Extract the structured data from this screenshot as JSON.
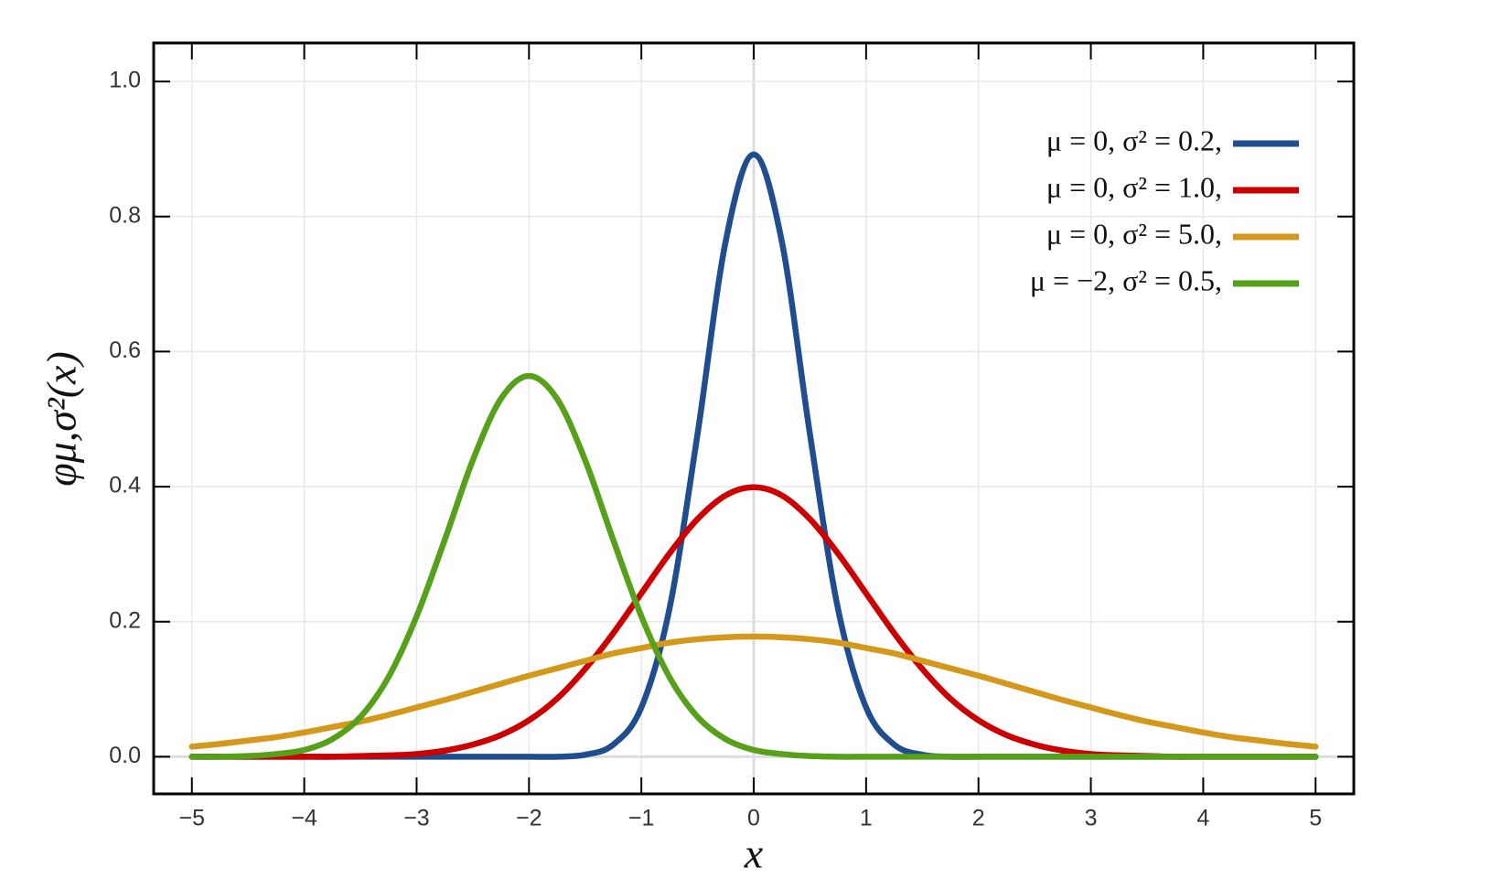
{
  "chart_data": {
    "type": "line",
    "x_label": "x",
    "y_label": "φμ,σ²(x)",
    "x": [
      -5,
      -4.75,
      -4.5,
      -4.25,
      -4,
      -3.75,
      -3.5,
      -3.25,
      -3,
      -2.75,
      -2.5,
      -2.25,
      -2,
      -1.75,
      -1.5,
      -1.25,
      -1,
      -0.75,
      -0.5,
      -0.25,
      0,
      0.25,
      0.5,
      0.75,
      1,
      1.25,
      1.5,
      1.75,
      2,
      2.25,
      2.5,
      2.75,
      3,
      3.25,
      3.5,
      3.75,
      4,
      4.25,
      4.5,
      4.75,
      5
    ],
    "series": [
      {
        "name": "μ = 0,    σ² = 0.2,",
        "color": "#1f4d8e",
        "values": [
          0,
          0,
          0,
          0,
          0,
          0,
          0,
          0,
          0,
          0,
          0,
          0,
          0,
          0.0,
          0.003,
          0.018,
          0.073,
          0.219,
          0.478,
          0.763,
          0.892,
          0.763,
          0.478,
          0.219,
          0.073,
          0.018,
          0.003,
          0.0,
          0,
          0,
          0,
          0,
          0,
          0,
          0,
          0,
          0,
          0,
          0,
          0,
          0
        ]
      },
      {
        "name": "μ = 0,    σ² = 1.0,",
        "color": "#cc0000",
        "values": [
          0,
          0,
          0,
          0,
          0,
          0.0,
          0.001,
          0.002,
          0.004,
          0.009,
          0.018,
          0.032,
          0.054,
          0.086,
          0.13,
          0.183,
          0.242,
          0.301,
          0.352,
          0.387,
          0.399,
          0.387,
          0.352,
          0.301,
          0.242,
          0.183,
          0.13,
          0.086,
          0.054,
          0.032,
          0.018,
          0.009,
          0.004,
          0.002,
          0.001,
          0.0,
          0,
          0,
          0,
          0,
          0
        ]
      },
      {
        "name": "μ = 0,    σ² = 5.0,",
        "color": "#d4981a",
        "values": [
          0.015,
          0.019,
          0.024,
          0.029,
          0.036,
          0.044,
          0.052,
          0.062,
          0.073,
          0.084,
          0.096,
          0.108,
          0.12,
          0.131,
          0.142,
          0.153,
          0.161,
          0.169,
          0.174,
          0.177,
          0.178,
          0.177,
          0.174,
          0.169,
          0.161,
          0.153,
          0.142,
          0.131,
          0.12,
          0.108,
          0.096,
          0.084,
          0.073,
          0.062,
          0.052,
          0.044,
          0.036,
          0.029,
          0.024,
          0.019,
          0.015
        ]
      },
      {
        "name": "μ = −2,  σ² = 0.5,",
        "color": "#56a01a",
        "values": [
          0.0,
          0.0,
          0.001,
          0.004,
          0.01,
          0.026,
          0.059,
          0.118,
          0.208,
          0.321,
          0.439,
          0.53,
          0.564,
          0.53,
          0.439,
          0.321,
          0.208,
          0.118,
          0.059,
          0.026,
          0.01,
          0.004,
          0.001,
          0,
          0,
          0,
          0,
          0,
          0,
          0,
          0,
          0,
          0,
          0,
          0,
          0,
          0,
          0,
          0,
          0,
          0
        ]
      }
    ],
    "xlim": [
      -5.34,
      5.34
    ],
    "ylim": [
      -0.055,
      1.057
    ],
    "xticks": [
      {
        "value": -5,
        "label": "−5"
      },
      {
        "value": -4,
        "label": "−4"
      },
      {
        "value": -3,
        "label": "−3"
      },
      {
        "value": -2,
        "label": "−2"
      },
      {
        "value": -1,
        "label": "−1"
      },
      0,
      1,
      2,
      3,
      4,
      5
    ],
    "yticks": [
      {
        "value": 0,
        "label": "0.0"
      },
      0.2,
      0.4,
      0.6,
      0.8,
      {
        "value": 1,
        "label": "1.0"
      }
    ],
    "grid": true,
    "legend": "upper right"
  }
}
